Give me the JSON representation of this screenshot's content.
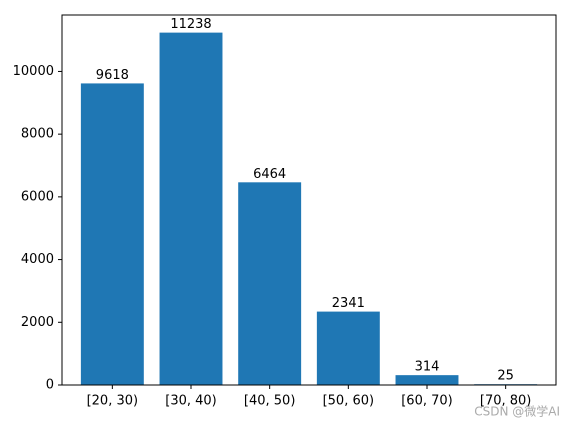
{
  "chart_data": {
    "type": "bar",
    "categories": [
      "[20, 30)",
      "[30, 40)",
      "[40, 50)",
      "[50, 60)",
      "[60, 70)",
      "[70, 80)"
    ],
    "values": [
      9618,
      11238,
      6464,
      2341,
      314,
      25
    ],
    "color": "#1f77b4",
    "ylim": [
      0,
      11800
    ],
    "yticks": [
      0,
      2000,
      4000,
      6000,
      8000,
      10000
    ],
    "grid": false,
    "watermark": "CSDN @微学AI"
  }
}
